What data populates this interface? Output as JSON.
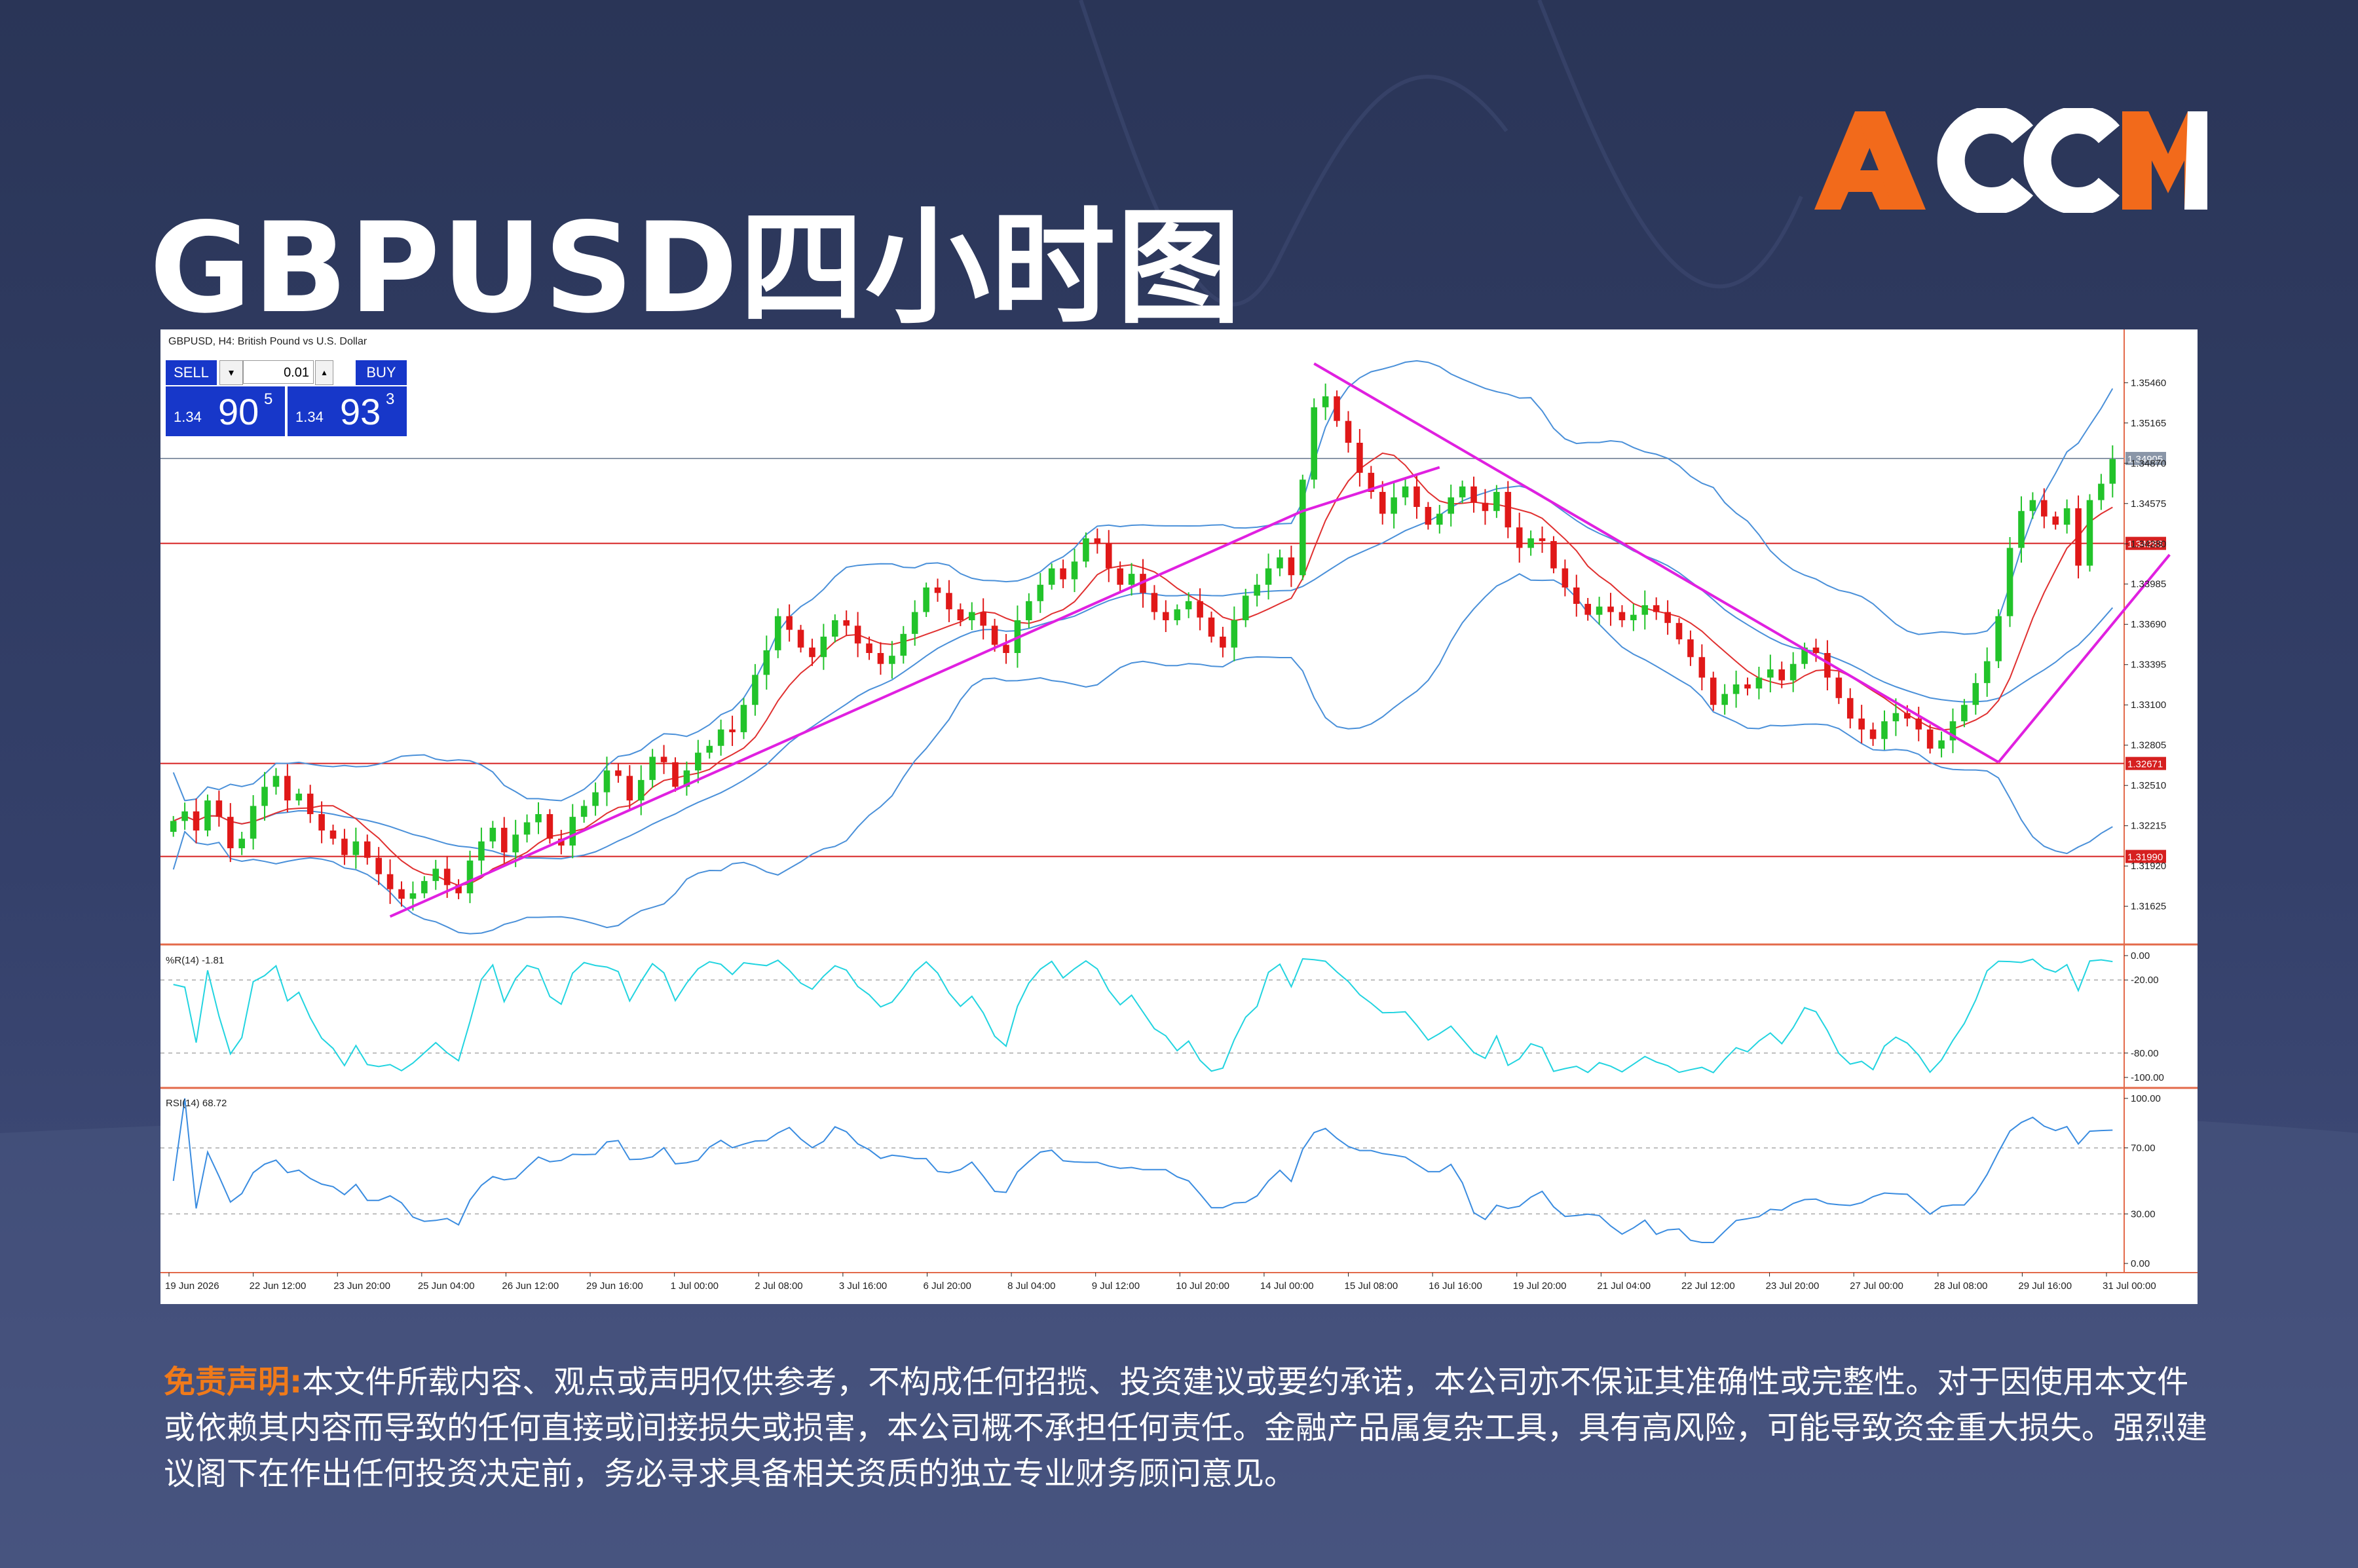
{
  "page": {
    "title": "GBPUSD四小时图",
    "logo_text": "ACCM",
    "colors": {
      "accent_orange": "#f26a1b",
      "background": "#2e3a60"
    }
  },
  "terminal": {
    "symbol_header": "GBPUSD, H4: British Pound vs U.S. Dollar",
    "sell_label": "SELL",
    "buy_label": "BUY",
    "lot_value": "0.01",
    "sell_price_prefix": "1.34",
    "sell_price_big": "90",
    "sell_price_sup": "5",
    "buy_price_prefix": "1.34",
    "buy_price_big": "93",
    "buy_price_sup": "3",
    "current_price_label": "1.34905"
  },
  "chart_data": [
    {
      "type": "candlestick",
      "title": "GBPUSD, H4: British Pound vs U.S. Dollar",
      "ylim": [
        1.3135,
        1.3585
      ],
      "y_ticks": [
        "1.35460",
        "1.35165",
        "1.34870",
        "1.34575",
        "1.34280",
        "1.33985",
        "1.33690",
        "1.33395",
        "1.33100",
        "1.32805",
        "1.32510",
        "1.32215",
        "1.31920",
        "1.31625"
      ],
      "x_ticks": [
        "19 Jun 2026",
        "22 Jun 12:00",
        "23 Jun 20:00",
        "25 Jun 04:00",
        "26 Jun 12:00",
        "29 Jun 16:00",
        "1 Jul 00:00",
        "2 Jul 08:00",
        "3 Jul 16:00",
        "6 Jul 20:00",
        "8 Jul 04:00",
        "9 Jul 12:00",
        "10 Jul 20:00",
        "14 Jul 00:00",
        "15 Jul 08:00",
        "16 Jul 16:00",
        "19 Jul 20:00",
        "21 Jul 04:00",
        "22 Jul 12:00",
        "23 Jul 20:00",
        "27 Jul 00:00",
        "28 Jul 08:00",
        "29 Jul 16:00",
        "31 Jul 00:00"
      ],
      "horizontal_levels": [
        {
          "value": 1.34905,
          "label": "1.34905",
          "color": "#8a96a8"
        },
        {
          "value": 1.34283,
          "label": "1.34283",
          "color": "#d62020"
        },
        {
          "value": 1.32671,
          "label": "1.32671",
          "color": "#d62020"
        },
        {
          "value": 1.3199,
          "label": "1.31990",
          "color": "#d62020"
        }
      ],
      "close": [
        1.3225,
        1.3232,
        1.3218,
        1.324,
        1.3228,
        1.3205,
        1.3212,
        1.3236,
        1.325,
        1.3258,
        1.324,
        1.3245,
        1.323,
        1.3218,
        1.3212,
        1.32,
        1.321,
        1.3198,
        1.3186,
        1.3175,
        1.3168,
        1.3172,
        1.3181,
        1.319,
        1.3178,
        1.3172,
        1.3196,
        1.321,
        1.322,
        1.3202,
        1.3215,
        1.3224,
        1.323,
        1.3212,
        1.3207,
        1.3228,
        1.3236,
        1.3246,
        1.3262,
        1.3258,
        1.324,
        1.3255,
        1.3272,
        1.3268,
        1.325,
        1.3262,
        1.3275,
        1.328,
        1.3292,
        1.329,
        1.331,
        1.3332,
        1.335,
        1.3375,
        1.3365,
        1.3352,
        1.3345,
        1.336,
        1.3372,
        1.3368,
        1.3355,
        1.3348,
        1.334,
        1.3346,
        1.3362,
        1.3378,
        1.3396,
        1.3392,
        1.338,
        1.3372,
        1.3378,
        1.3368,
        1.3354,
        1.3348,
        1.3372,
        1.3386,
        1.3398,
        1.341,
        1.3402,
        1.3415,
        1.3432,
        1.3428,
        1.341,
        1.3398,
        1.3406,
        1.3392,
        1.3378,
        1.3372,
        1.338,
        1.3386,
        1.3374,
        1.336,
        1.3352,
        1.3372,
        1.339,
        1.3398,
        1.341,
        1.3418,
        1.3405,
        1.3475,
        1.3528,
        1.3536,
        1.3518,
        1.3502,
        1.348,
        1.3466,
        1.345,
        1.3462,
        1.347,
        1.3455,
        1.3442,
        1.345,
        1.3462,
        1.347,
        1.3458,
        1.3452,
        1.3466,
        1.344,
        1.3425,
        1.3432,
        1.343,
        1.341,
        1.3396,
        1.3384,
        1.3376,
        1.3382,
        1.3378,
        1.3372,
        1.3376,
        1.3383,
        1.3378,
        1.337,
        1.3358,
        1.3345,
        1.333,
        1.331,
        1.3318,
        1.3325,
        1.3322,
        1.333,
        1.3336,
        1.3328,
        1.334,
        1.3352,
        1.3348,
        1.333,
        1.3315,
        1.33,
        1.3292,
        1.3285,
        1.3298,
        1.3304,
        1.33,
        1.3292,
        1.3278,
        1.3284,
        1.3298,
        1.331,
        1.3326,
        1.3342,
        1.3375,
        1.3425,
        1.3452,
        1.346,
        1.3448,
        1.3442,
        1.3454,
        1.3412,
        1.346,
        1.3472,
        1.349
      ],
      "indicators": [
        "Bollinger Bands",
        "Moving Average"
      ]
    },
    {
      "type": "line",
      "title": "%R(14) -1.81",
      "ylim": [
        -100,
        0
      ],
      "y_ticks": [
        "0.00",
        "-20.00",
        "-80.00",
        "-100.00"
      ],
      "reference_lines": [
        -20,
        -80
      ]
    },
    {
      "type": "line",
      "title": "RSI(14) 68.72",
      "ylim": [
        0,
        100
      ],
      "y_ticks": [
        "100.00",
        "70.00",
        "30.00",
        "0.00"
      ],
      "reference_lines": [
        70,
        30
      ]
    }
  ],
  "disclaimer": {
    "lead": "免责声明:",
    "body": "本文件所载内容、观点或声明仅供参考，不构成任何招揽、投资建议或要约承诺，本公司亦不保证其准确性或完整性。对于因使用本文件或依赖其内容而导致的任何直接或间接损失或损害，本公司概不承担任何责任。金融产品属复杂工具，具有高风险，可能导致资金重大损失。强烈建议阁下在作出任何投资决定前，务必寻求具备相关资质的独立专业财务顾问意见。"
  }
}
